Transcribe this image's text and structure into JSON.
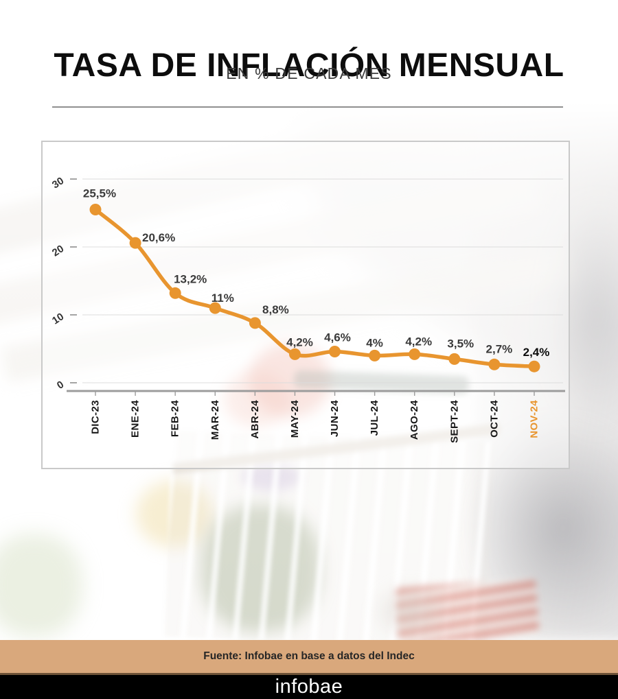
{
  "header": {
    "title": "TASA DE INFLACIÓN MENSUAL",
    "subtitle": "EN % DE CADA MES"
  },
  "chart_data": {
    "type": "line",
    "title": "TASA DE INFLACIÓN MENSUAL",
    "subtitle": "EN % DE CADA MES",
    "categories": [
      "DIC-23",
      "ENE-24",
      "FEB-24",
      "MAR-24",
      "ABR-24",
      "MAY-24",
      "JUN-24",
      "JUL-24",
      "AGO-24",
      "SEPT-24",
      "OCT-24",
      "NOV-24"
    ],
    "values": [
      25.5,
      20.6,
      13.2,
      11,
      8.8,
      4.2,
      4.6,
      4,
      4.2,
      3.5,
      2.7,
      2.4
    ],
    "point_labels": [
      "25,5%",
      "20,6%",
      "13,2%",
      "11%",
      "8,8%",
      "4,2%",
      "4,6%",
      "4%",
      "4,2%",
      "3,5%",
      "2,7%",
      "2,4%"
    ],
    "xlabel": "",
    "ylabel": "",
    "y_ticks": [
      0,
      10,
      20,
      30
    ],
    "ylim": [
      0,
      32
    ],
    "grid": true,
    "legend": false,
    "highlighted_category": "NOV-24"
  },
  "footer": {
    "source": "Fuente: Infobae en base a datos del Indec",
    "brand": "infobae"
  },
  "colors": {
    "line": "#E8952F",
    "highlight_label": "#E8952F",
    "source_bar": "#D9A87C",
    "brand_bar": "#000000"
  }
}
